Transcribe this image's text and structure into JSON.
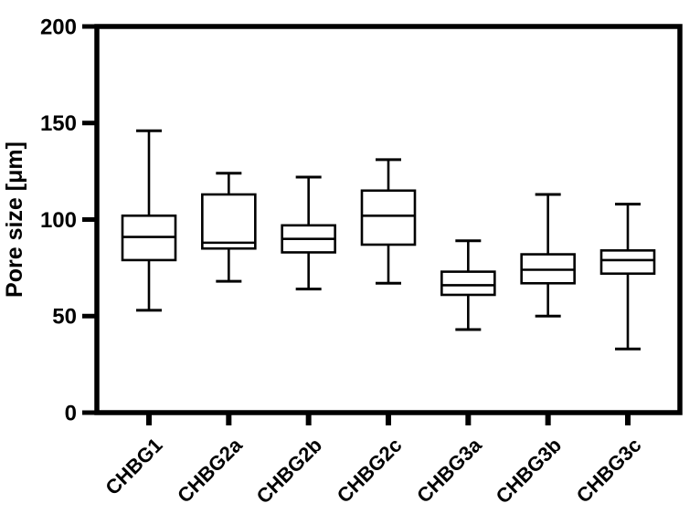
{
  "figure": {
    "background": "#ffffff"
  },
  "chart_data": {
    "type": "box",
    "title": "",
    "xlabel": "",
    "ylabel": "Pore size [μm]",
    "ylim": [
      0,
      200
    ],
    "yticks": [
      0,
      50,
      100,
      150,
      200
    ],
    "grid": false,
    "legend": false,
    "x_tick_rotation_deg": -45,
    "categories": [
      "CHBG1",
      "CHBG2a",
      "CHBG2b",
      "CHBG2c",
      "CHBG3a",
      "CHBG3b",
      "CHBG3c"
    ],
    "boxes": [
      {
        "label": "CHBG1",
        "min": 53,
        "q1": 79,
        "median": 91,
        "q3": 102,
        "max": 146
      },
      {
        "label": "CHBG2a",
        "min": 68,
        "q1": 85,
        "median": 88,
        "q3": 113,
        "max": 124
      },
      {
        "label": "CHBG2b",
        "min": 64,
        "q1": 83,
        "median": 90,
        "q3": 97,
        "max": 122
      },
      {
        "label": "CHBG2c",
        "min": 67,
        "q1": 87,
        "median": 102,
        "q3": 115,
        "max": 131
      },
      {
        "label": "CHBG3a",
        "min": 43,
        "q1": 61,
        "median": 66,
        "q3": 73,
        "max": 89
      },
      {
        "label": "CHBG3b",
        "min": 50,
        "q1": 67,
        "median": 74,
        "q3": 82,
        "max": 113
      },
      {
        "label": "CHBG3c",
        "min": 33,
        "q1": 72,
        "median": 79,
        "q3": 84,
        "max": 108
      }
    ],
    "colors": {
      "axis": "#000000",
      "box_stroke": "#000000",
      "box_fill": "#ffffff",
      "background": "#ffffff"
    }
  }
}
